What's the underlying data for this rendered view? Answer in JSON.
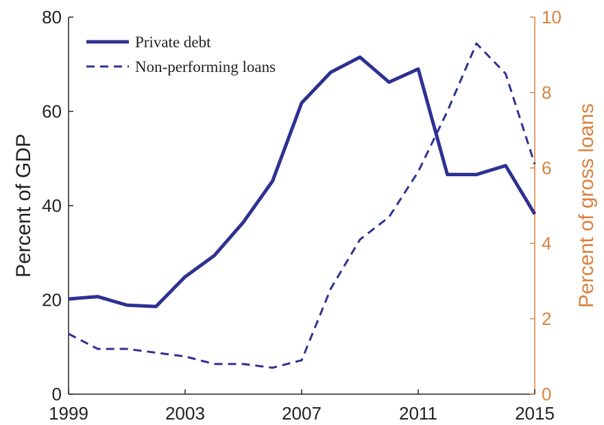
{
  "chart_data": {
    "type": "line",
    "x": [
      1999,
      2000,
      2001,
      2002,
      2003,
      2004,
      2005,
      2006,
      2007,
      2008,
      2009,
      2010,
      2011,
      2012,
      2013,
      2014,
      2015
    ],
    "xlim": [
      1999,
      2015
    ],
    "xticks": [
      "1999",
      "2003",
      "2007",
      "2011",
      "2015"
    ],
    "ylabel": "Percent of GDP",
    "ylim": [
      0,
      80
    ],
    "yticks": [
      "0",
      "20",
      "40",
      "60",
      "80"
    ],
    "ylabel_right": "Percent of gross loans",
    "ylim_right": [
      0,
      10
    ],
    "yticks_right": [
      "0",
      "2",
      "4",
      "6",
      "8",
      "10"
    ],
    "grid": false,
    "legend_position": "top-left",
    "series": [
      {
        "name": "Private debt",
        "axis": "left",
        "style": "solid",
        "color": "#2E3192",
        "values": [
          20.2,
          20.7,
          18.9,
          18.6,
          24.9,
          29.4,
          36.5,
          45.2,
          61.8,
          68.3,
          71.5,
          66.2,
          69.0,
          46.6,
          46.6,
          48.5,
          38.2
        ]
      },
      {
        "name": "Non-performing loans",
        "axis": "right",
        "style": "dashed",
        "color": "#2E3192",
        "values": [
          1.6,
          1.2,
          1.2,
          1.1,
          1.0,
          0.8,
          0.8,
          0.7,
          0.9,
          2.8,
          4.1,
          4.7,
          5.9,
          7.5,
          9.3,
          8.5,
          6.1
        ]
      }
    ]
  },
  "colors": {
    "series": "#2E3192",
    "right_axis": "#D9823F",
    "left_axis": "#222222"
  }
}
